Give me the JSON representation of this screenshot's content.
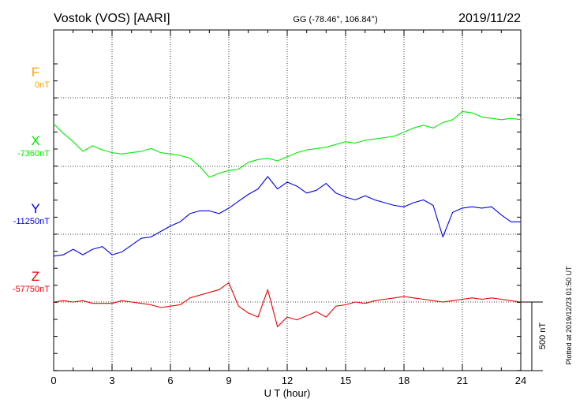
{
  "header": {
    "station": "Vostok (VOS)  [AARI]",
    "coords": "GG (-78.46°, 106.84°)",
    "date": "2019/11/22"
  },
  "plotted_note": "Plotted at 2019/12/23 01:50 UT",
  "scale_label": "500 nT",
  "colors": {
    "F": "#ffa500",
    "X": "#00ee00",
    "Y": "#0000ee",
    "Z": "#ee0000",
    "grid": "#000000"
  },
  "chart_data": {
    "type": "line",
    "title": "Vostok (VOS)  [AARI]",
    "xlabel": "U T (hour)",
    "ylabel": "",
    "xlim": [
      0,
      24
    ],
    "x_ticks": [
      "0",
      "3",
      "6",
      "9",
      "12",
      "15",
      "18",
      "21",
      "24"
    ],
    "grid": true,
    "scale_bar_nT": 500,
    "series": [
      {
        "name": "F",
        "baseline_label": "0nT",
        "baseline_nT": 0,
        "color": "#ffa500",
        "x": [],
        "values": []
      },
      {
        "name": "X",
        "baseline_label": "-7360nT",
        "baseline_nT": -7360,
        "color": "#00ee00",
        "x": [
          0,
          0.5,
          1,
          1.5,
          2,
          2.5,
          3,
          3.5,
          4,
          4.5,
          5,
          5.5,
          6,
          6.5,
          7,
          7.5,
          8,
          8.5,
          9,
          9.5,
          10,
          10.5,
          11,
          11.5,
          12,
          12.5,
          13,
          13.5,
          14,
          14.5,
          15,
          15.5,
          16,
          16.5,
          17,
          17.5,
          18,
          18.5,
          19,
          19.5,
          20,
          20.5,
          21,
          21.5,
          22,
          22.5,
          23,
          23.5,
          24
        ],
        "values": [
          -7050,
          -7120,
          -7180,
          -7250,
          -7210,
          -7240,
          -7260,
          -7270,
          -7260,
          -7250,
          -7230,
          -7260,
          -7270,
          -7280,
          -7300,
          -7360,
          -7440,
          -7410,
          -7390,
          -7380,
          -7330,
          -7310,
          -7300,
          -7320,
          -7290,
          -7260,
          -7240,
          -7230,
          -7220,
          -7200,
          -7180,
          -7190,
          -7170,
          -7160,
          -7150,
          -7140,
          -7110,
          -7080,
          -7060,
          -7080,
          -7040,
          -7020,
          -6960,
          -6970,
          -7000,
          -7010,
          -7020,
          -7010,
          -7020
        ]
      },
      {
        "name": "Y",
        "baseline_label": "-11250nT",
        "baseline_nT": -11250,
        "color": "#0000ee",
        "x": [
          0,
          0.5,
          1,
          1.5,
          2,
          2.5,
          3,
          3.5,
          4,
          4.5,
          5,
          5.5,
          6,
          6.5,
          7,
          7.5,
          8,
          8.5,
          9,
          9.5,
          10,
          10.5,
          11,
          11.5,
          12,
          12.5,
          13,
          13.5,
          14,
          14.5,
          15,
          15.5,
          16,
          16.5,
          17,
          17.5,
          18,
          18.5,
          19,
          19.5,
          20,
          20.5,
          21,
          21.5,
          22,
          22.5,
          23,
          23.5,
          24
        ],
        "values": [
          -11410,
          -11400,
          -11360,
          -11400,
          -11360,
          -11340,
          -11400,
          -11380,
          -11330,
          -11280,
          -11270,
          -11230,
          -11190,
          -11160,
          -11100,
          -11080,
          -11080,
          -11100,
          -11060,
          -11010,
          -10960,
          -10920,
          -10830,
          -10920,
          -10870,
          -10900,
          -10950,
          -10930,
          -10880,
          -10950,
          -10980,
          -11000,
          -10970,
          -11000,
          -11020,
          -11040,
          -11050,
          -11020,
          -11000,
          -11040,
          -11270,
          -11090,
          -11060,
          -11050,
          -11060,
          -11050,
          -11110,
          -11160,
          -11160
        ]
      },
      {
        "name": "Z",
        "baseline_label": "-57750nT",
        "baseline_nT": -57750,
        "color": "#ee0000",
        "x": [
          0,
          0.5,
          1,
          1.5,
          2,
          2.5,
          3,
          3.5,
          4,
          4.5,
          5,
          5.5,
          6,
          6.5,
          7,
          7.5,
          8,
          8.5,
          9,
          9.5,
          10,
          10.5,
          11,
          11.5,
          12,
          12.5,
          13,
          13.5,
          14,
          14.5,
          15,
          15.5,
          16,
          16.5,
          17,
          17.5,
          18,
          18.5,
          19,
          19.5,
          20,
          20.5,
          21,
          21.5,
          22,
          22.5,
          23,
          23.5,
          24
        ],
        "values": [
          -57750,
          -57740,
          -57750,
          -57740,
          -57760,
          -57760,
          -57760,
          -57740,
          -57750,
          -57760,
          -57770,
          -57790,
          -57780,
          -57770,
          -57720,
          -57700,
          -57680,
          -57660,
          -57610,
          -57780,
          -57830,
          -57860,
          -57660,
          -57930,
          -57860,
          -57880,
          -57850,
          -57820,
          -57860,
          -57780,
          -57770,
          -57750,
          -57760,
          -57740,
          -57730,
          -57720,
          -57710,
          -57720,
          -57730,
          -57740,
          -57750,
          -57740,
          -57730,
          -57720,
          -57730,
          -57720,
          -57730,
          -57740,
          -57750
        ]
      }
    ]
  }
}
